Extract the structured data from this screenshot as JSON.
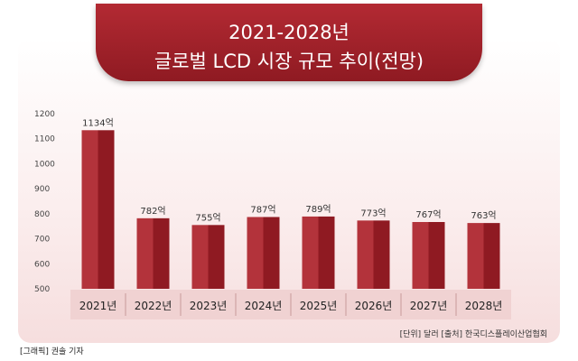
{
  "header": {
    "title_line1": "2021-2028년",
    "title_line2": "글로벌 LCD 시장 규모 추이(전망)"
  },
  "footer": {
    "source": "[단위] 달러   [출처] 한국디스플레이산업협회",
    "credit": "[그래픽] 권솔 기자"
  },
  "colors": {
    "bar_dark": "#8f1a22",
    "bar_light": "#b3333b",
    "banner": "#a6222b",
    "year_band": "#f0d2d2"
  },
  "chart_data": {
    "type": "bar",
    "title": "2021-2028년 글로벌 LCD 시장 규모 추이(전망)",
    "categories": [
      "2021년",
      "2022년",
      "2023년",
      "2024년",
      "2025년",
      "2026년",
      "2027년",
      "2028년"
    ],
    "values": [
      1134,
      782,
      755,
      787,
      789,
      773,
      767,
      763
    ],
    "value_labels": [
      "1134억",
      "782억",
      "755억",
      "787억",
      "789억",
      "773억",
      "767억",
      "763억"
    ],
    "yticks": [
      "500",
      "600",
      "700",
      "800",
      "900",
      "1000",
      "1100",
      "1200"
    ],
    "ylim": [
      500,
      1200
    ],
    "grid": false,
    "legend": "none"
  }
}
